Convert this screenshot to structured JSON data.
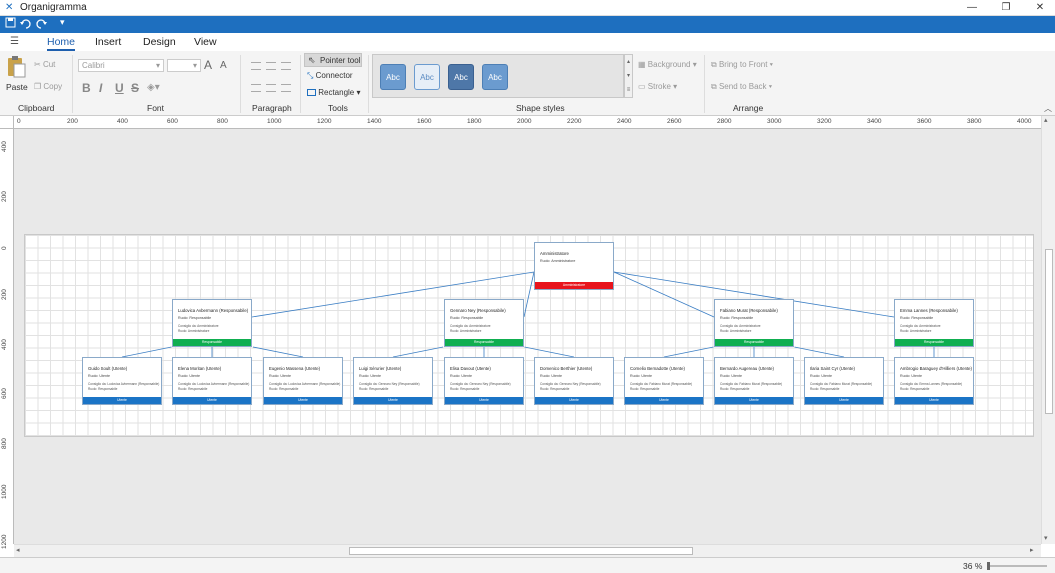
{
  "window": {
    "title": "Organigramma",
    "minimize": "—",
    "maximize": "❐",
    "close": "✕"
  },
  "qat": {
    "save_icon": "save-icon",
    "undo_icon": "undo-icon",
    "redo_icon": "redo-icon",
    "dropdown": "▾"
  },
  "tabs": {
    "menu_icon": "☰",
    "items": [
      "Home",
      "Insert",
      "Design",
      "View"
    ],
    "active": "Home"
  },
  "ribbon": {
    "clipboard": {
      "label": "Clipboard",
      "paste": "Paste",
      "cut": "Cut",
      "copy": "Copy"
    },
    "font": {
      "label": "Font",
      "family": "Calibri",
      "size": "",
      "grow": "A",
      "shrink": "A",
      "bold": "B",
      "italic": "I",
      "underline": "U",
      "strike": "S"
    },
    "paragraph": {
      "label": "Paragraph"
    },
    "tools": {
      "label": "Tools",
      "pointer": "Pointer tool",
      "connector": "Connector",
      "rectangle": "Rectangle"
    },
    "shape_styles": {
      "label": "Shape styles",
      "swatch_text": "Abc",
      "background": "Background",
      "stroke": "Stroke"
    },
    "arrange": {
      "label": "Arrange",
      "front": "Bring to Front",
      "back": "Send to Back"
    }
  },
  "rulers": {
    "h": [
      "0",
      "200",
      "400",
      "600",
      "800",
      "1000",
      "1200",
      "1400",
      "1600",
      "1800",
      "2000",
      "2200",
      "2400",
      "2600",
      "2800",
      "3000",
      "3200",
      "3400",
      "3600",
      "3800",
      "4000"
    ],
    "v": [
      "400",
      "200",
      "0",
      "200",
      "400",
      "600",
      "800",
      "1000",
      "1200"
    ]
  },
  "status": {
    "zoom": "36 %"
  },
  "colors": {
    "accent": "#1e6fbf",
    "admin": "#e8141c",
    "responsabile": "#0fae50",
    "utente": "#1b74c6"
  },
  "org": {
    "admin": {
      "name": "Amministratore",
      "role": "Ruolo: Amministratore",
      "band": "Amministratore"
    },
    "managers": [
      {
        "name": "Ludovica Avbermann (Responsabile)",
        "role": "Ruolo: Responsabile",
        "info1": "Consiglio da: Amministratore",
        "info2": "Ruolo: Amministratore",
        "band": "Responsabile"
      },
      {
        "name": "Gennaro Ney (Responsabile)",
        "role": "Ruolo: Responsabile",
        "info1": "Consiglio da: Amministratore",
        "info2": "Ruolo: Amministratore",
        "band": "Responsabile"
      },
      {
        "name": "Fabiano Murat (Responsabile)",
        "role": "Ruolo: Responsabile",
        "info1": "Consiglio da: Amministratore",
        "info2": "Ruolo: Amministratore",
        "band": "Responsabile"
      },
      {
        "name": "Emma Lannes (Responsabile)",
        "role": "Ruolo: Responsabile",
        "info1": "Consiglio da: Amministratore",
        "info2": "Ruolo: Amministratore",
        "band": "Responsabile"
      }
    ],
    "users": [
      {
        "name": "Guido Soult (Utente)",
        "role": "Ruolo: Utente",
        "info1": "Consiglio da: Ludovica Avbermann (Responsabile)",
        "info2": "Ruolo: Responsabile",
        "band": "Utente"
      },
      {
        "name": "Elena Moritan (Utente)",
        "role": "Ruolo: Utente",
        "info1": "Consiglio da: Ludovica Avbermann (Responsabile)",
        "info2": "Ruolo: Responsabile",
        "band": "Utente"
      },
      {
        "name": "Eugenio Massena (Utente)",
        "role": "Ruolo: Utente",
        "info1": "Consiglio da: Ludovica Avbermann (Responsabile)",
        "info2": "Ruolo: Responsabile",
        "band": "Utente"
      },
      {
        "name": "Luigi Sérurier (Utente)",
        "role": "Ruolo: Utente",
        "info1": "Consiglio da: Gennaro Ney (Responsabile)",
        "info2": "Ruolo: Responsabile",
        "band": "Utente"
      },
      {
        "name": "Elisa Davout (Utente)",
        "role": "Ruolo: Utente",
        "info1": "Consiglio da: Gennaro Ney (Responsabile)",
        "info2": "Ruolo: Responsabile",
        "band": "Utente"
      },
      {
        "name": "Domenico Berthier (Utente)",
        "role": "Ruolo: Utente",
        "info1": "Consiglio da: Gennaro Ney (Responsabile)",
        "info2": "Ruolo: Responsabile",
        "band": "Utente"
      },
      {
        "name": "Cornelio Bernadotte (Utente)",
        "role": "Ruolo: Utente",
        "info1": "Consiglio da: Fabiano Murat (Responsabile)",
        "info2": "Ruolo: Responsabile",
        "band": "Utente"
      },
      {
        "name": "Bernardo Augereau (Utente)",
        "role": "Ruolo: Utente",
        "info1": "Consiglio da: Fabiano Murat (Responsabile)",
        "info2": "Ruolo: Responsabile",
        "band": "Utente"
      },
      {
        "name": "Ilaria Saint Cyr (Utente)",
        "role": "Ruolo: Utente",
        "info1": "Consiglio da: Fabiano Murat (Responsabile)",
        "info2": "Ruolo: Responsabile",
        "band": "Utente"
      },
      {
        "name": "Ambrogio Baraguey d'Hilliers (Utente)",
        "role": "Ruolo: Utente",
        "info1": "Consiglio da: Emma Lannes (Responsabile)",
        "info2": "Ruolo: Responsabile",
        "band": "Utente"
      }
    ]
  }
}
